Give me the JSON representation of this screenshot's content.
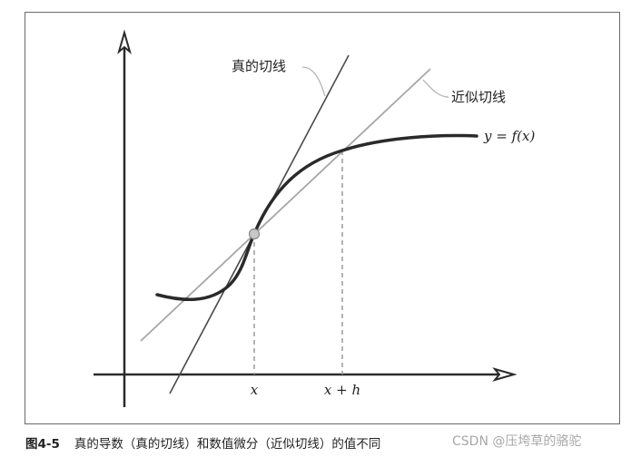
{
  "diagram": {
    "labels": {
      "true_tangent": "真的切线",
      "approx_tangent": "近似切线",
      "curve": "y = f(x)",
      "x_tick": "x",
      "xh_tick": "x + h"
    }
  },
  "caption": {
    "figure_number": "图4-5",
    "text": "真的导数（真的切线）和数值微分（近似切线）的值不同"
  },
  "watermark": "CSDN @压垮草的骆驼",
  "colors": {
    "curve": "#2a2a2a",
    "true_tangent": "#4a4a4a",
    "approx_tangent": "#a6a6a6",
    "axes": "#2a2a2a",
    "guides": "#9a9a9a",
    "point_fill": "#c8c8c8"
  }
}
